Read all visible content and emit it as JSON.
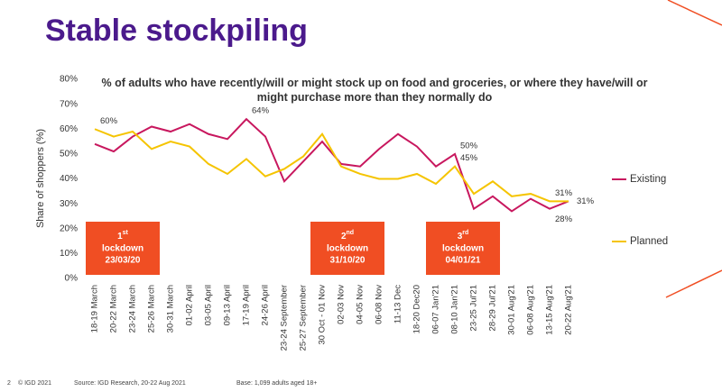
{
  "chart_data": {
    "type": "line",
    "title": "Stable stockpiling",
    "subtitle": "% of adults who have recently/will or might stock up on food and groceries, or where they have/will or might purchase more than they normally do",
    "y_label": "Share of shoppers (%)",
    "categories": [
      "18-19 March",
      "20-22 March",
      "23-24 March",
      "25-26 March",
      "30-31 March",
      "01-02 April",
      "03-05 April",
      "09-13 April",
      "17-19 April",
      "24-26 April",
      "23-24 September",
      "25-27 September",
      "30 Oct - 01 Nov",
      "02-03 Nov",
      "04-05 Nov",
      "06-08 Nov",
      "11-13 Dec",
      "18-20 Dec20",
      "06-07 Jan'21",
      "08-10 Jan'21",
      "23-25 Jul'21",
      "28-29 Jul'21",
      "30-01 Aug'21",
      "06-08 Aug'21",
      "13-15 Aug'21",
      "20-22 Aug'21"
    ],
    "series": [
      {
        "name": "Existing",
        "color": "#c8175e",
        "values": [
          54,
          51,
          57,
          61,
          59,
          62,
          58,
          56,
          64,
          57,
          39,
          47,
          55,
          46,
          45,
          52,
          58,
          53,
          45,
          50,
          28,
          33,
          27,
          32,
          28,
          31
        ],
        "value_labels": [
          null,
          null,
          null,
          null,
          null,
          null,
          null,
          null,
          "64%",
          null,
          null,
          null,
          null,
          null,
          null,
          null,
          null,
          null,
          null,
          "50%",
          null,
          null,
          null,
          null,
          "28%",
          "31%"
        ]
      },
      {
        "name": "Planned",
        "color": "#f5c400",
        "values": [
          60,
          57,
          59,
          52,
          55,
          53,
          46,
          42,
          48,
          41,
          44,
          49,
          58,
          45,
          42,
          40,
          40,
          42,
          38,
          45,
          34,
          39,
          33,
          34,
          31,
          31
        ],
        "value_labels": [
          "60%",
          null,
          null,
          null,
          null,
          null,
          null,
          null,
          null,
          null,
          null,
          null,
          null,
          null,
          null,
          null,
          null,
          null,
          null,
          "45%",
          null,
          null,
          null,
          null,
          "31%",
          null
        ]
      }
    ],
    "ylim": [
      0,
      80
    ],
    "yticks": [
      {
        "value": 0,
        "label": "0%"
      },
      {
        "value": 10,
        "label": "10%"
      },
      {
        "value": 20,
        "label": "20%"
      },
      {
        "value": 30,
        "label": "30%"
      },
      {
        "value": 40,
        "label": "40%"
      },
      {
        "value": 50,
        "label": "50%"
      },
      {
        "value": 60,
        "label": "60%"
      },
      {
        "value": 70,
        "label": "70%"
      },
      {
        "value": 80,
        "label": "80%"
      }
    ],
    "legend": "right",
    "annotations": [
      {
        "ordinal": "1",
        "suffix": "st",
        "text": "lockdown",
        "date": "23/03/20"
      },
      {
        "ordinal": "2",
        "suffix": "nd",
        "text": "lockdown",
        "date": "31/10/20"
      },
      {
        "ordinal": "3",
        "suffix": "rd",
        "text": "lockdown",
        "date": "04/01/21"
      }
    ]
  },
  "footer": {
    "page": "2",
    "copyright": "© IGD 2021",
    "source": "Source: IGD Research, 20-22 Aug 2021",
    "base": "Base: 1,099 adults aged 18+"
  }
}
